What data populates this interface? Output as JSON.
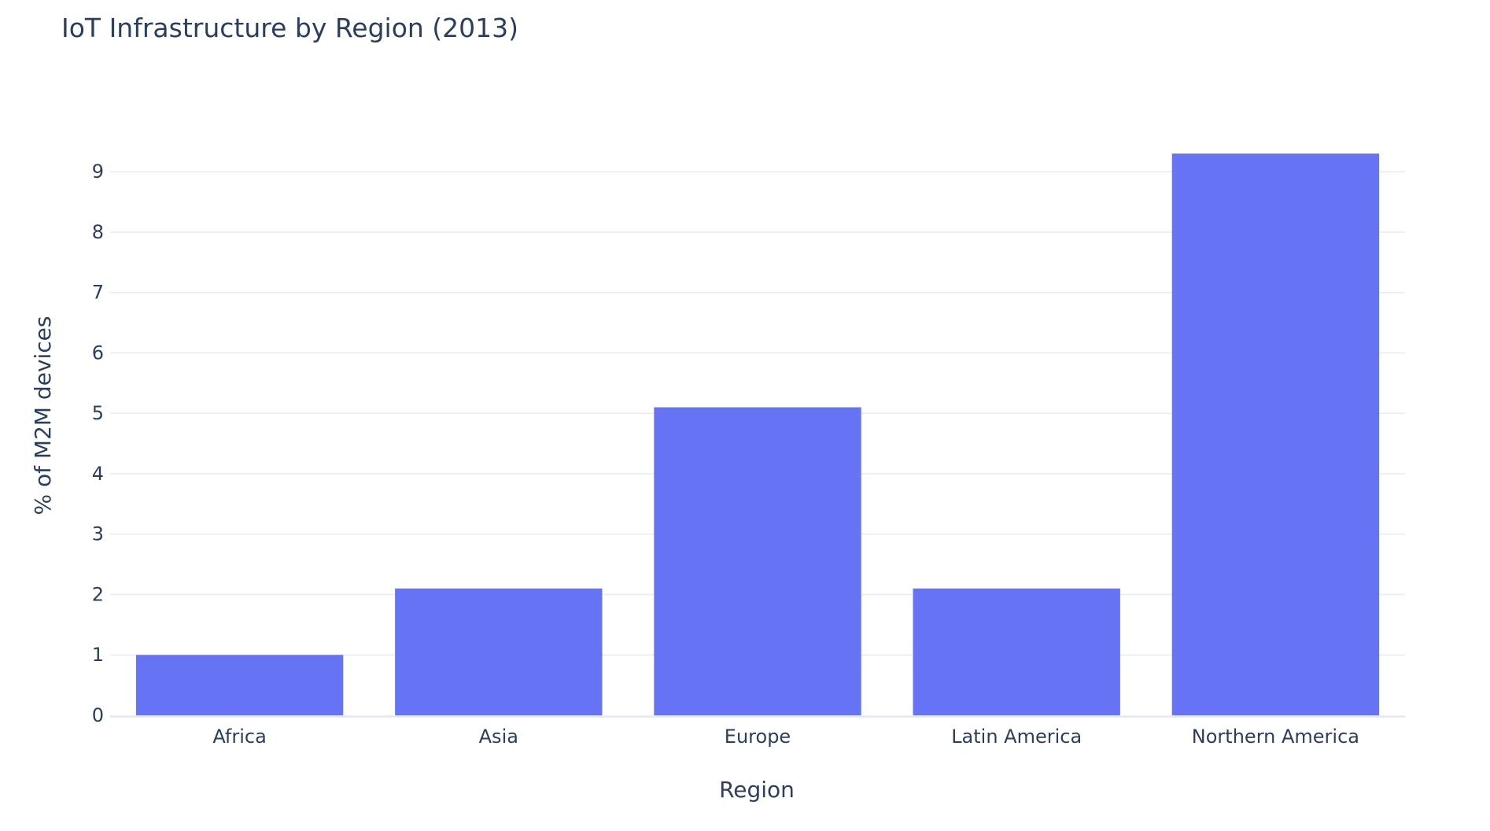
{
  "chart_data": {
    "type": "bar",
    "title": "IoT Infrastructure by Region (2013)",
    "xlabel": "Region",
    "ylabel": "% of M2M devices",
    "categories": [
      "Africa",
      "Asia",
      "Europe",
      "Latin America",
      "Northern America"
    ],
    "values": [
      1.0,
      2.1,
      5.1,
      2.1,
      9.3
    ],
    "ylim": [
      0,
      9.55
    ],
    "yticks": [
      0,
      1,
      2,
      3,
      4,
      5,
      6,
      7,
      8,
      9
    ],
    "grid": true,
    "legend": "none",
    "colors": {
      "bar": "#6673f5",
      "grid": "#e6ebf5",
      "baseline": "#e6ebf5",
      "text": "#2a3f5f"
    }
  }
}
